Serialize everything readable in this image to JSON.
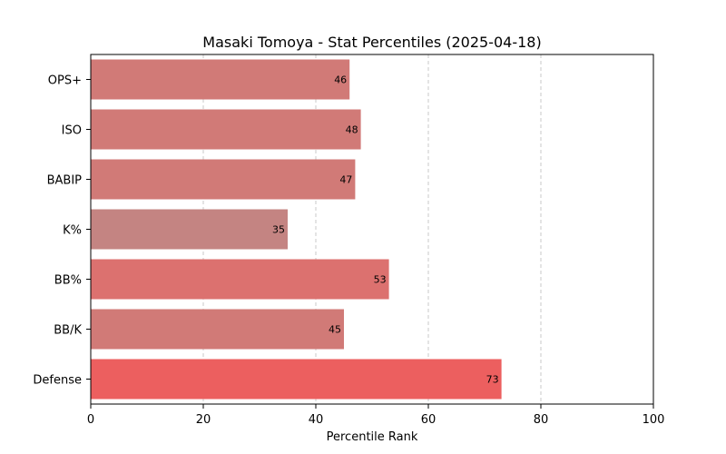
{
  "chart_data": {
    "type": "bar",
    "orientation": "horizontal",
    "title": "Masaki Tomoya - Stat Percentiles (2025-04-18)",
    "xlabel": "Percentile Rank",
    "ylabel": "",
    "xlim": [
      0,
      100
    ],
    "xticks": [
      0,
      20,
      40,
      60,
      80,
      100
    ],
    "grid": "x-dashed",
    "categories": [
      "OPS+",
      "ISO",
      "BABIP",
      "K%",
      "BB%",
      "BB/K",
      "Defense"
    ],
    "values": [
      46,
      48,
      47,
      35,
      53,
      45,
      73
    ],
    "colors": [
      "#d17a77",
      "#d17a77",
      "#d17a77",
      "#c48482",
      "#dc716f",
      "#d17a77",
      "#ec5f5f"
    ]
  }
}
